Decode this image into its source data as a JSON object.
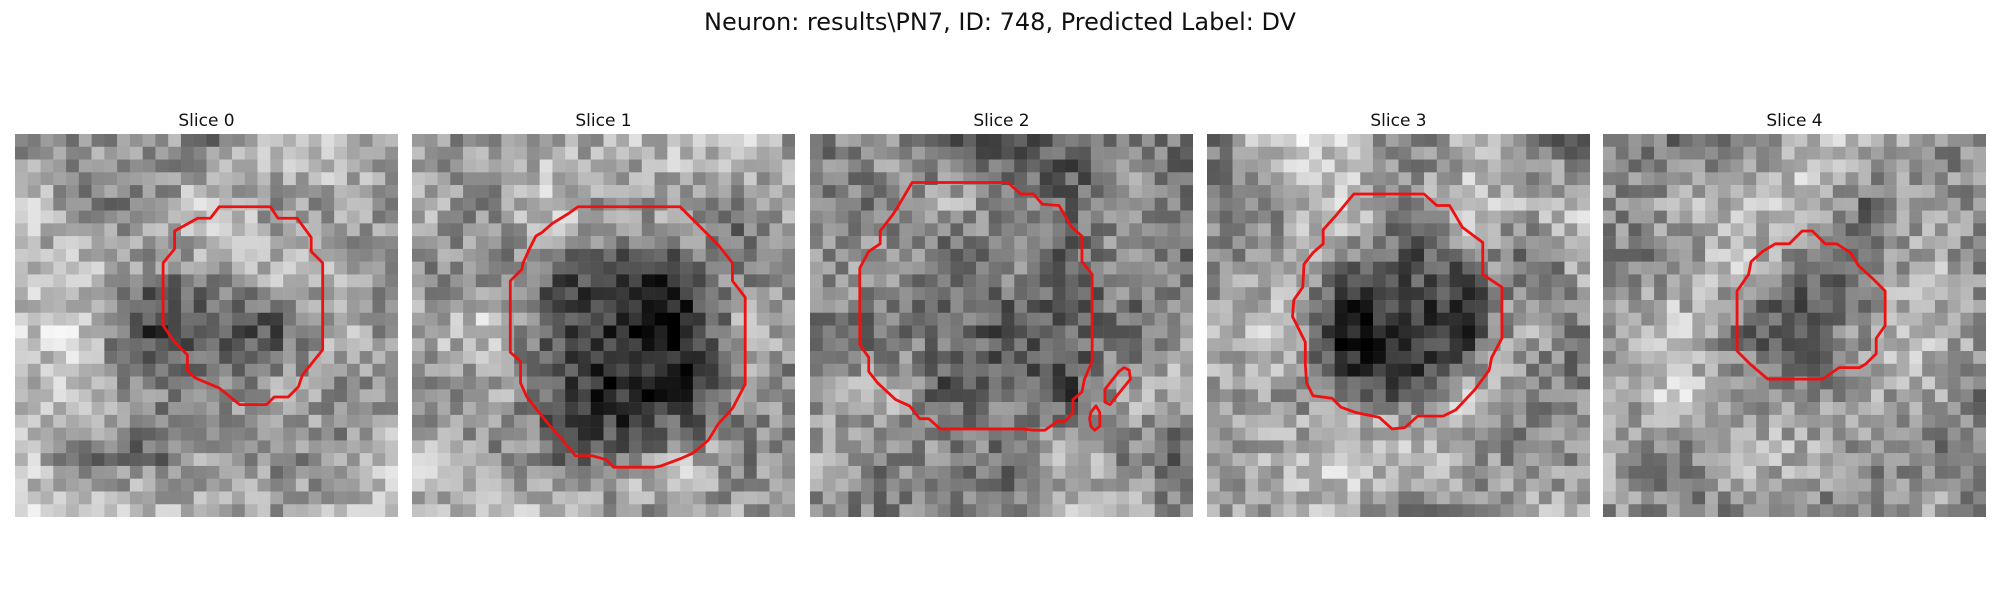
{
  "figure": {
    "title": "Neuron: results\\PN7, ID: 748, Predicted Label: DV"
  },
  "slices": [
    {
      "label": "Slice 0",
      "dark_center": [
        0.48,
        0.62
      ],
      "dark_radius": 0.32,
      "dark_strength": 0.35,
      "base_brightness": 0.68,
      "seed": 11
    },
    {
      "label": "Slice 1",
      "dark_center": [
        0.55,
        0.58
      ],
      "dark_radius": 0.33,
      "dark_strength": 0.7,
      "base_brightness": 0.66,
      "seed": 23
    },
    {
      "label": "Slice 2",
      "dark_center": [
        0.5,
        0.47
      ],
      "dark_radius": 0.3,
      "dark_strength": 0.25,
      "base_brightness": 0.55,
      "seed": 37
    },
    {
      "label": "Slice 3",
      "dark_center": [
        0.5,
        0.47
      ],
      "dark_radius": 0.27,
      "dark_strength": 0.6,
      "base_brightness": 0.6,
      "seed": 41
    },
    {
      "label": "Slice 4",
      "dark_center": [
        0.55,
        0.5
      ],
      "dark_radius": 0.2,
      "dark_strength": 0.2,
      "base_brightness": 0.65,
      "seed": 53
    }
  ],
  "colors": {
    "outline": "#ee1111",
    "title_text": "#111111"
  }
}
